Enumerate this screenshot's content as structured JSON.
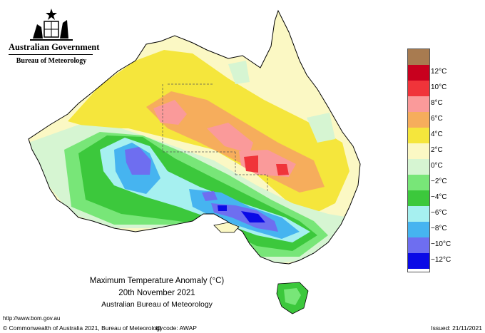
{
  "header": {
    "government": "Australian Government",
    "department": "Bureau of Meteorology"
  },
  "map": {
    "title": "Maximum Temperature Anomaly (°C)",
    "date": "20th November 2021",
    "organisation": "Australian Bureau of Meteorology"
  },
  "legend": [
    {
      "label": "",
      "color": "#a87b50"
    },
    {
      "label": "12°C",
      "color": "#c8001e"
    },
    {
      "label": "10°C",
      "color": "#f0343a"
    },
    {
      "label": "8°C",
      "color": "#fa9a9a"
    },
    {
      "label": "6°C",
      "color": "#f6ad5c"
    },
    {
      "label": "4°C",
      "color": "#f5e63c"
    },
    {
      "label": "2°C",
      "color": "#fbf8c4"
    },
    {
      "label": "0°C",
      "color": "#d6f5d2"
    },
    {
      "label": "−2°C",
      "color": "#78e678"
    },
    {
      "label": "−4°C",
      "color": "#3cc83c"
    },
    {
      "label": "−6°C",
      "color": "#a6f0f0"
    },
    {
      "label": "−8°C",
      "color": "#46b4f0"
    },
    {
      "label": "−10°C",
      "color": "#6e6ef0"
    },
    {
      "label": "−12°C",
      "color": "#0a0ae6"
    }
  ],
  "footer": {
    "url": "http://www.bom.gov.au",
    "copyright": "© Commonwealth of Australia 2021, Bureau of Meteorology",
    "id_code": "ID code: AWAP",
    "issued": "Issued: 21/11/2021"
  }
}
